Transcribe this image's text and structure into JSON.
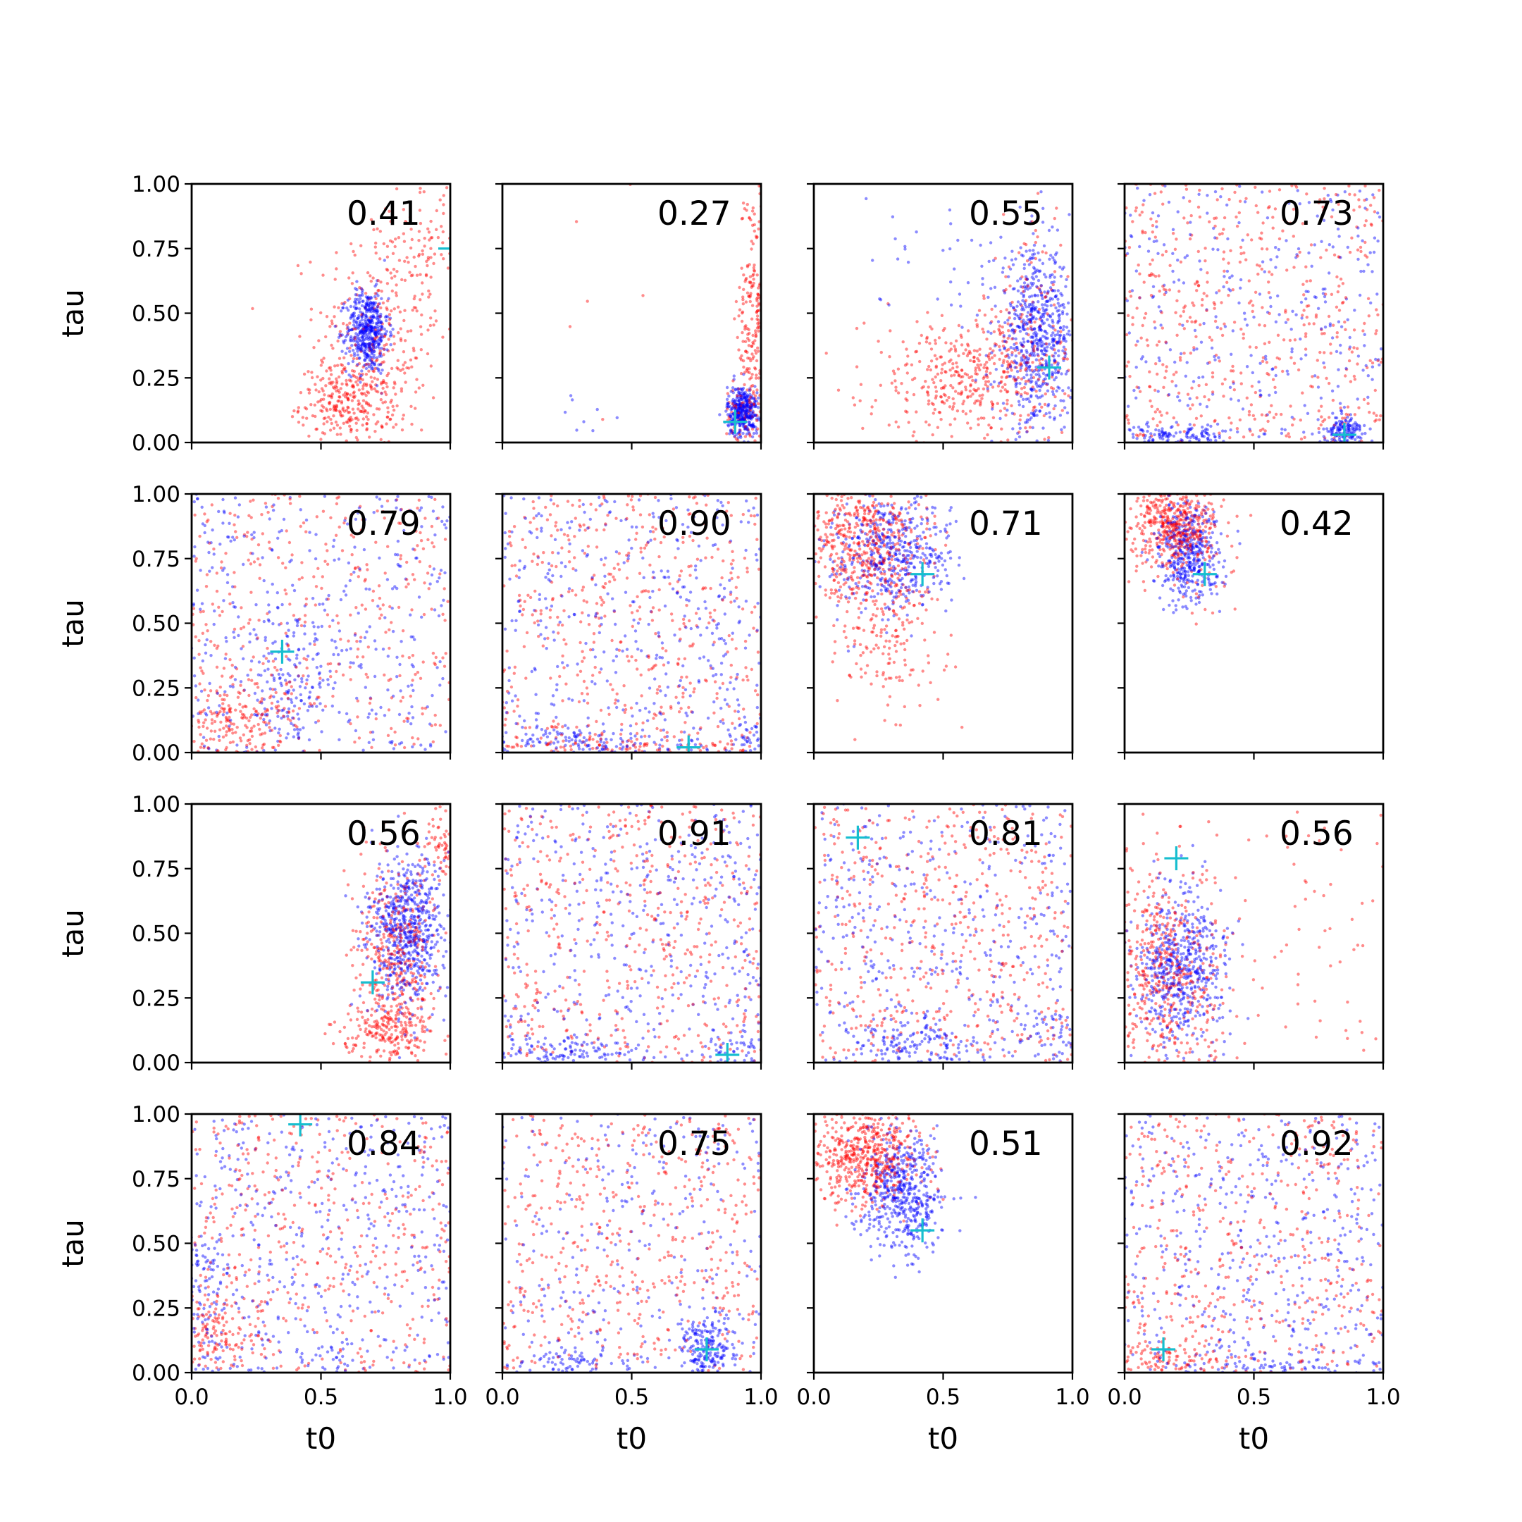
{
  "colors": {
    "series_a": "#ff0000",
    "series_b": "#0000ff",
    "marker": "#17becf",
    "axes": "#000000"
  },
  "chart_data": [
    {
      "type": "scatter",
      "row": 0,
      "col": 0,
      "annotation": "0.41",
      "xlim": [
        0,
        1
      ],
      "ylim": [
        0,
        1
      ],
      "marker": {
        "x": 1.0,
        "y": 0.75
      },
      "series": [
        {
          "color": "red",
          "clusters": [
            {
              "cx": 0.72,
              "cy": 0.4,
              "sx": 0.12,
              "sy": 0.25,
              "n": 320
            },
            {
              "cx": 0.6,
              "cy": 0.15,
              "sx": 0.09,
              "sy": 0.07,
              "n": 240
            },
            {
              "cx": 0.93,
              "cy": 0.8,
              "sx": 0.07,
              "sy": 0.15,
              "n": 90
            }
          ]
        },
        {
          "color": "blue",
          "clusters": [
            {
              "cx": 0.68,
              "cy": 0.43,
              "sx": 0.04,
              "sy": 0.08,
              "n": 480
            }
          ]
        }
      ]
    },
    {
      "type": "scatter",
      "row": 0,
      "col": 1,
      "annotation": "0.27",
      "xlim": [
        0,
        1
      ],
      "ylim": [
        0,
        1
      ],
      "marker": {
        "x": 0.9,
        "y": 0.08
      },
      "series": [
        {
          "color": "red",
          "clusters": [
            {
              "cx": 0.97,
              "cy": 0.45,
              "sx": 0.03,
              "sy": 0.3,
              "n": 240
            },
            {
              "cx": 0.92,
              "cy": 0.12,
              "sx": 0.03,
              "sy": 0.05,
              "n": 60
            },
            {
              "cx": 0.4,
              "cy": 0.4,
              "sx": 0.15,
              "sy": 0.25,
              "n": 6
            }
          ]
        },
        {
          "color": "blue",
          "clusters": [
            {
              "cx": 0.93,
              "cy": 0.12,
              "sx": 0.03,
              "sy": 0.05,
              "n": 380
            },
            {
              "cx": 0.25,
              "cy": 0.12,
              "sx": 0.15,
              "sy": 0.06,
              "n": 8
            }
          ]
        }
      ]
    },
    {
      "type": "scatter",
      "row": 0,
      "col": 2,
      "annotation": "0.55",
      "xlim": [
        0,
        1
      ],
      "ylim": [
        0,
        1
      ],
      "marker": {
        "x": 0.91,
        "y": 0.29
      },
      "series": [
        {
          "color": "red",
          "clusters": [
            {
              "cx": 0.6,
              "cy": 0.25,
              "sx": 0.2,
              "sy": 0.12,
              "n": 420
            },
            {
              "cx": 0.85,
              "cy": 0.45,
              "sx": 0.1,
              "sy": 0.2,
              "n": 140
            }
          ]
        },
        {
          "color": "blue",
          "clusters": [
            {
              "cx": 0.86,
              "cy": 0.4,
              "sx": 0.07,
              "sy": 0.17,
              "n": 620
            },
            {
              "cx": 0.6,
              "cy": 0.7,
              "sx": 0.25,
              "sy": 0.2,
              "n": 50
            }
          ]
        }
      ]
    },
    {
      "type": "scatter",
      "row": 0,
      "col": 3,
      "annotation": "0.73",
      "xlim": [
        0,
        1
      ],
      "ylim": [
        0,
        1
      ],
      "marker": {
        "x": 0.85,
        "y": 0.03
      },
      "series": [
        {
          "color": "red",
          "clusters": [
            {
              "uniform": true,
              "n": 520
            }
          ]
        },
        {
          "color": "blue",
          "clusters": [
            {
              "uniform": true,
              "n": 300
            },
            {
              "cx": 0.85,
              "cy": 0.04,
              "sx": 0.04,
              "sy": 0.03,
              "n": 150
            },
            {
              "cx": 0.15,
              "cy": 0.03,
              "sx": 0.08,
              "sy": 0.02,
              "n": 80
            },
            {
              "cx": 0.3,
              "cy": 0.03,
              "sx": 0.05,
              "sy": 0.02,
              "n": 40
            }
          ]
        }
      ]
    },
    {
      "type": "scatter",
      "row": 1,
      "col": 0,
      "annotation": "0.79",
      "xlim": [
        0,
        1
      ],
      "ylim": [
        0,
        1
      ],
      "marker": {
        "x": 0.35,
        "y": 0.39
      },
      "series": [
        {
          "color": "red",
          "clusters": [
            {
              "uniform": true,
              "n": 380
            },
            {
              "cx": 0.15,
              "cy": 0.12,
              "sx": 0.15,
              "sy": 0.08,
              "n": 200
            }
          ]
        },
        {
          "color": "blue",
          "clusters": [
            {
              "uniform": true,
              "n": 360
            },
            {
              "cx": 0.38,
              "cy": 0.25,
              "sx": 0.08,
              "sy": 0.15,
              "n": 140
            }
          ]
        }
      ]
    },
    {
      "type": "scatter",
      "row": 1,
      "col": 1,
      "annotation": "0.90",
      "xlim": [
        0,
        1
      ],
      "ylim": [
        0,
        1
      ],
      "marker": {
        "x": 0.72,
        "y": 0.02
      },
      "series": [
        {
          "color": "red",
          "clusters": [
            {
              "uniform": true,
              "n": 480
            },
            {
              "cx": 0.5,
              "cy": 0.03,
              "sx": 0.3,
              "sy": 0.02,
              "n": 80
            }
          ]
        },
        {
          "color": "blue",
          "clusters": [
            {
              "uniform": true,
              "n": 400
            },
            {
              "cx": 0.3,
              "cy": 0.04,
              "sx": 0.2,
              "sy": 0.03,
              "n": 130
            },
            {
              "cx": 0.95,
              "cy": 0.06,
              "sx": 0.04,
              "sy": 0.04,
              "n": 40
            }
          ]
        }
      ]
    },
    {
      "type": "scatter",
      "row": 1,
      "col": 2,
      "annotation": "0.71",
      "xlim": [
        0,
        1
      ],
      "ylim": [
        0,
        1
      ],
      "marker": {
        "x": 0.42,
        "y": 0.69
      },
      "series": [
        {
          "color": "red",
          "clusters": [
            {
              "cx": 0.2,
              "cy": 0.82,
              "sx": 0.12,
              "sy": 0.12,
              "n": 520
            },
            {
              "cx": 0.3,
              "cy": 0.45,
              "sx": 0.1,
              "sy": 0.15,
              "n": 160
            }
          ]
        },
        {
          "color": "blue",
          "clusters": [
            {
              "cx": 0.3,
              "cy": 0.78,
              "sx": 0.12,
              "sy": 0.12,
              "n": 480
            }
          ]
        }
      ]
    },
    {
      "type": "scatter",
      "row": 1,
      "col": 3,
      "annotation": "0.42",
      "xlim": [
        0,
        1
      ],
      "ylim": [
        0,
        1
      ],
      "marker": {
        "x": 0.31,
        "y": 0.69
      },
      "series": [
        {
          "color": "red",
          "clusters": [
            {
              "cx": 0.18,
              "cy": 0.88,
              "sx": 0.08,
              "sy": 0.08,
              "n": 480
            },
            {
              "cx": 0.35,
              "cy": 0.65,
              "sx": 0.08,
              "sy": 0.08,
              "n": 20
            }
          ]
        },
        {
          "color": "blue",
          "clusters": [
            {
              "cx": 0.25,
              "cy": 0.77,
              "sx": 0.06,
              "sy": 0.1,
              "n": 420
            }
          ]
        }
      ]
    },
    {
      "type": "scatter",
      "row": 2,
      "col": 0,
      "annotation": "0.56",
      "xlim": [
        0,
        1
      ],
      "ylim": [
        0,
        1
      ],
      "marker": {
        "x": 0.7,
        "y": 0.31
      },
      "series": [
        {
          "color": "red",
          "clusters": [
            {
              "cx": 0.78,
              "cy": 0.4,
              "sx": 0.08,
              "sy": 0.18,
              "n": 380
            },
            {
              "cx": 0.75,
              "cy": 0.12,
              "sx": 0.09,
              "sy": 0.06,
              "n": 200
            },
            {
              "cx": 0.96,
              "cy": 0.85,
              "sx": 0.03,
              "sy": 0.08,
              "n": 60
            }
          ]
        },
        {
          "color": "blue",
          "clusters": [
            {
              "cx": 0.83,
              "cy": 0.5,
              "sx": 0.08,
              "sy": 0.14,
              "n": 640
            }
          ]
        }
      ]
    },
    {
      "type": "scatter",
      "row": 2,
      "col": 1,
      "annotation": "0.91",
      "xlim": [
        0,
        1
      ],
      "ylim": [
        0,
        1
      ],
      "marker": {
        "x": 0.87,
        "y": 0.03
      },
      "series": [
        {
          "color": "red",
          "clusters": [
            {
              "uniform": true,
              "n": 480
            }
          ]
        },
        {
          "color": "blue",
          "clusters": [
            {
              "uniform": true,
              "n": 420
            },
            {
              "cx": 0.25,
              "cy": 0.04,
              "sx": 0.15,
              "sy": 0.03,
              "n": 100
            },
            {
              "cx": 0.9,
              "cy": 0.05,
              "sx": 0.06,
              "sy": 0.03,
              "n": 40
            }
          ]
        }
      ]
    },
    {
      "type": "scatter",
      "row": 2,
      "col": 2,
      "annotation": "0.81",
      "xlim": [
        0,
        1
      ],
      "ylim": [
        0,
        1
      ],
      "marker": {
        "x": 0.17,
        "y": 0.87
      },
      "series": [
        {
          "color": "red",
          "clusters": [
            {
              "uniform": true,
              "n": 500
            }
          ]
        },
        {
          "color": "blue",
          "clusters": [
            {
              "uniform": true,
              "n": 380
            },
            {
              "cx": 0.38,
              "cy": 0.08,
              "sx": 0.12,
              "sy": 0.06,
              "n": 160
            },
            {
              "cx": 0.92,
              "cy": 0.1,
              "sx": 0.06,
              "sy": 0.06,
              "n": 40
            }
          ]
        }
      ]
    },
    {
      "type": "scatter",
      "row": 2,
      "col": 3,
      "annotation": "0.56",
      "xlim": [
        0,
        1
      ],
      "ylim": [
        0,
        1
      ],
      "marker": {
        "x": 0.2,
        "y": 0.79
      },
      "series": [
        {
          "color": "red",
          "clusters": [
            {
              "cx": 0.15,
              "cy": 0.35,
              "sx": 0.12,
              "sy": 0.2,
              "n": 480
            },
            {
              "uniform": true,
              "n": 100
            }
          ]
        },
        {
          "color": "blue",
          "clusters": [
            {
              "cx": 0.22,
              "cy": 0.37,
              "sx": 0.09,
              "sy": 0.15,
              "n": 560
            }
          ]
        }
      ]
    },
    {
      "type": "scatter",
      "row": 3,
      "col": 0,
      "annotation": "0.84",
      "xlim": [
        0,
        1
      ],
      "ylim": [
        0,
        1
      ],
      "marker": {
        "x": 0.42,
        "y": 0.96
      },
      "series": [
        {
          "color": "red",
          "clusters": [
            {
              "uniform": true,
              "n": 440
            },
            {
              "cx": 0.08,
              "cy": 0.15,
              "sx": 0.08,
              "sy": 0.12,
              "n": 140
            }
          ]
        },
        {
          "color": "blue",
          "clusters": [
            {
              "uniform": true,
              "n": 420
            },
            {
              "cx": 0.05,
              "cy": 0.3,
              "sx": 0.05,
              "sy": 0.15,
              "n": 90
            },
            {
              "cx": 0.55,
              "cy": 0.05,
              "sx": 0.05,
              "sy": 0.04,
              "n": 30
            }
          ]
        }
      ]
    },
    {
      "type": "scatter",
      "row": 3,
      "col": 1,
      "annotation": "0.75",
      "xlim": [
        0,
        1
      ],
      "ylim": [
        0,
        1
      ],
      "marker": {
        "x": 0.79,
        "y": 0.09
      },
      "series": [
        {
          "color": "red",
          "clusters": [
            {
              "uniform": true,
              "n": 480
            }
          ]
        },
        {
          "color": "blue",
          "clusters": [
            {
              "uniform": true,
              "n": 280
            },
            {
              "cx": 0.79,
              "cy": 0.1,
              "sx": 0.05,
              "sy": 0.06,
              "n": 200
            },
            {
              "cx": 0.28,
              "cy": 0.04,
              "sx": 0.08,
              "sy": 0.03,
              "n": 60
            }
          ]
        }
      ]
    },
    {
      "type": "scatter",
      "row": 3,
      "col": 2,
      "annotation": "0.51",
      "xlim": [
        0,
        1
      ],
      "ylim": [
        0,
        1
      ],
      "marker": {
        "x": 0.42,
        "y": 0.55
      },
      "series": [
        {
          "color": "red",
          "clusters": [
            {
              "cx": 0.2,
              "cy": 0.85,
              "sx": 0.11,
              "sy": 0.1,
              "n": 560
            }
          ]
        },
        {
          "color": "blue",
          "clusters": [
            {
              "cx": 0.34,
              "cy": 0.7,
              "sx": 0.08,
              "sy": 0.12,
              "n": 520
            }
          ]
        }
      ]
    },
    {
      "type": "scatter",
      "row": 3,
      "col": 3,
      "annotation": "0.92",
      "xlim": [
        0,
        1
      ],
      "ylim": [
        0,
        1
      ],
      "marker": {
        "x": 0.15,
        "y": 0.09
      },
      "series": [
        {
          "color": "red",
          "clusters": [
            {
              "uniform": true,
              "n": 460
            },
            {
              "cx": 0.15,
              "cy": 0.05,
              "sx": 0.1,
              "sy": 0.04,
              "n": 90
            }
          ]
        },
        {
          "color": "blue",
          "clusters": [
            {
              "uniform": true,
              "n": 420
            },
            {
              "cx": 0.6,
              "cy": 0.03,
              "sx": 0.3,
              "sy": 0.02,
              "n": 100
            }
          ]
        }
      ]
    }
  ],
  "axes": {
    "xlabel": "t0",
    "ylabel": "tau",
    "xticks": [
      "0.0",
      "0.5",
      "1.0"
    ],
    "yticks": [
      "0.00",
      "0.25",
      "0.50",
      "0.75",
      "1.00"
    ]
  }
}
